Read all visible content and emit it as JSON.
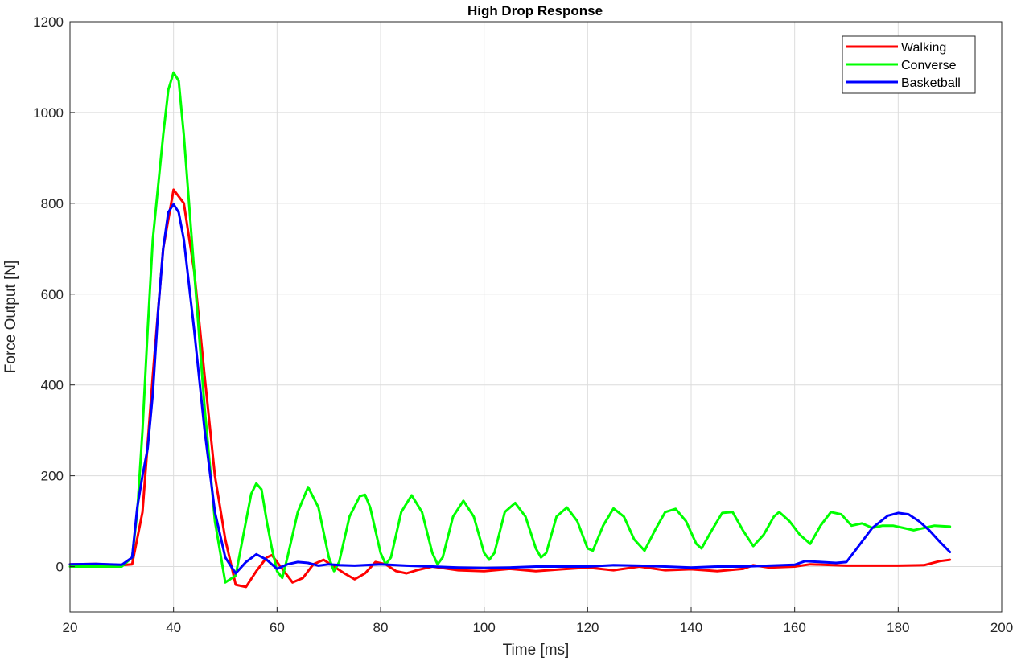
{
  "chart_data": {
    "type": "line",
    "title": "High Drop Response",
    "xlabel": "Time [ms]",
    "ylabel": "Force Output [N]",
    "xlim": [
      20,
      200
    ],
    "ylim": [
      -100,
      1200
    ],
    "xticks": [
      20,
      40,
      60,
      80,
      100,
      120,
      140,
      160,
      180,
      200
    ],
    "yticks": [
      0,
      200,
      400,
      600,
      800,
      1000,
      1200
    ],
    "grid": true,
    "legend_position": "top-right",
    "series": [
      {
        "name": "Walking",
        "color": "#ff0000",
        "points": [
          [
            20,
            5
          ],
          [
            25,
            6
          ],
          [
            30,
            3
          ],
          [
            32,
            5
          ],
          [
            34,
            120
          ],
          [
            36,
            420
          ],
          [
            38,
            700
          ],
          [
            40,
            830
          ],
          [
            42,
            800
          ],
          [
            44,
            650
          ],
          [
            46,
            420
          ],
          [
            48,
            200
          ],
          [
            50,
            60
          ],
          [
            52,
            -40
          ],
          [
            54,
            -45
          ],
          [
            56,
            -10
          ],
          [
            58,
            20
          ],
          [
            59,
            25
          ],
          [
            61,
            -5
          ],
          [
            63,
            -35
          ],
          [
            65,
            -25
          ],
          [
            67,
            5
          ],
          [
            69,
            15
          ],
          [
            71,
            0
          ],
          [
            73,
            -15
          ],
          [
            75,
            -28
          ],
          [
            77,
            -15
          ],
          [
            79,
            10
          ],
          [
            81,
            5
          ],
          [
            83,
            -10
          ],
          [
            85,
            -15
          ],
          [
            87,
            -8
          ],
          [
            90,
            0
          ],
          [
            95,
            -8
          ],
          [
            100,
            -10
          ],
          [
            105,
            -5
          ],
          [
            110,
            -10
          ],
          [
            115,
            -6
          ],
          [
            120,
            -2
          ],
          [
            125,
            -8
          ],
          [
            130,
            0
          ],
          [
            135,
            -8
          ],
          [
            140,
            -6
          ],
          [
            145,
            -10
          ],
          [
            150,
            -5
          ],
          [
            152,
            3
          ],
          [
            155,
            -2
          ],
          [
            160,
            0
          ],
          [
            163,
            5
          ],
          [
            170,
            2
          ],
          [
            180,
            2
          ],
          [
            185,
            3
          ],
          [
            188,
            12
          ],
          [
            190,
            15
          ]
        ]
      },
      {
        "name": "Converse",
        "color": "#00ff00",
        "points": [
          [
            20,
            0
          ],
          [
            25,
            0
          ],
          [
            30,
            0
          ],
          [
            32,
            20
          ],
          [
            33,
            120
          ],
          [
            34,
            300
          ],
          [
            35,
            520
          ],
          [
            36,
            720
          ],
          [
            38,
            950
          ],
          [
            39,
            1050
          ],
          [
            40,
            1088
          ],
          [
            41,
            1070
          ],
          [
            42,
            950
          ],
          [
            44,
            650
          ],
          [
            46,
            350
          ],
          [
            48,
            100
          ],
          [
            50,
            -35
          ],
          [
            52,
            -20
          ],
          [
            53,
            40
          ],
          [
            55,
            160
          ],
          [
            56,
            183
          ],
          [
            57,
            170
          ],
          [
            58,
            100
          ],
          [
            59,
            40
          ],
          [
            60,
            -10
          ],
          [
            61,
            -25
          ],
          [
            62,
            20
          ],
          [
            64,
            120
          ],
          [
            66,
            175
          ],
          [
            68,
            130
          ],
          [
            70,
            20
          ],
          [
            71,
            -10
          ],
          [
            72,
            10
          ],
          [
            74,
            110
          ],
          [
            76,
            155
          ],
          [
            77,
            158
          ],
          [
            78,
            130
          ],
          [
            80,
            30
          ],
          [
            81,
            5
          ],
          [
            82,
            20
          ],
          [
            84,
            120
          ],
          [
            86,
            157
          ],
          [
            88,
            120
          ],
          [
            90,
            30
          ],
          [
            91,
            5
          ],
          [
            92,
            20
          ],
          [
            94,
            110
          ],
          [
            96,
            145
          ],
          [
            98,
            110
          ],
          [
            100,
            30
          ],
          [
            101,
            15
          ],
          [
            102,
            30
          ],
          [
            104,
            120
          ],
          [
            106,
            140
          ],
          [
            108,
            110
          ],
          [
            110,
            40
          ],
          [
            111,
            20
          ],
          [
            112,
            30
          ],
          [
            114,
            110
          ],
          [
            116,
            130
          ],
          [
            118,
            100
          ],
          [
            120,
            40
          ],
          [
            121,
            35
          ],
          [
            123,
            90
          ],
          [
            125,
            128
          ],
          [
            127,
            110
          ],
          [
            129,
            60
          ],
          [
            131,
            35
          ],
          [
            133,
            80
          ],
          [
            135,
            120
          ],
          [
            137,
            127
          ],
          [
            139,
            100
          ],
          [
            141,
            50
          ],
          [
            142,
            40
          ],
          [
            144,
            80
          ],
          [
            146,
            118
          ],
          [
            148,
            120
          ],
          [
            150,
            80
          ],
          [
            152,
            45
          ],
          [
            154,
            70
          ],
          [
            156,
            110
          ],
          [
            157,
            120
          ],
          [
            159,
            100
          ],
          [
            161,
            70
          ],
          [
            163,
            50
          ],
          [
            165,
            90
          ],
          [
            167,
            120
          ],
          [
            169,
            115
          ],
          [
            171,
            90
          ],
          [
            173,
            95
          ],
          [
            175,
            85
          ],
          [
            177,
            90
          ],
          [
            179,
            90
          ],
          [
            181,
            85
          ],
          [
            183,
            80
          ],
          [
            185,
            85
          ],
          [
            187,
            90
          ],
          [
            190,
            88
          ]
        ]
      },
      {
        "name": "Basketball",
        "color": "#0000ff",
        "points": [
          [
            20,
            5
          ],
          [
            25,
            6
          ],
          [
            30,
            4
          ],
          [
            32,
            20
          ],
          [
            33,
            130
          ],
          [
            34,
            200
          ],
          [
            35,
            260
          ],
          [
            36,
            380
          ],
          [
            37,
            560
          ],
          [
            38,
            700
          ],
          [
            39,
            780
          ],
          [
            40,
            798
          ],
          [
            41,
            780
          ],
          [
            42,
            720
          ],
          [
            44,
            520
          ],
          [
            46,
            300
          ],
          [
            48,
            120
          ],
          [
            50,
            20
          ],
          [
            52,
            -15
          ],
          [
            54,
            10
          ],
          [
            56,
            27
          ],
          [
            58,
            15
          ],
          [
            60,
            -5
          ],
          [
            62,
            5
          ],
          [
            64,
            10
          ],
          [
            66,
            8
          ],
          [
            68,
            2
          ],
          [
            70,
            5
          ],
          [
            72,
            3
          ],
          [
            75,
            2
          ],
          [
            80,
            5
          ],
          [
            85,
            2
          ],
          [
            90,
            0
          ],
          [
            95,
            -2
          ],
          [
            100,
            -3
          ],
          [
            105,
            -2
          ],
          [
            110,
            0
          ],
          [
            115,
            0
          ],
          [
            120,
            0
          ],
          [
            125,
            3
          ],
          [
            130,
            2
          ],
          [
            135,
            0
          ],
          [
            140,
            -2
          ],
          [
            145,
            0
          ],
          [
            150,
            0
          ],
          [
            155,
            2
          ],
          [
            160,
            4
          ],
          [
            162,
            12
          ],
          [
            165,
            10
          ],
          [
            168,
            8
          ],
          [
            170,
            10
          ],
          [
            172,
            40
          ],
          [
            175,
            85
          ],
          [
            178,
            112
          ],
          [
            180,
            118
          ],
          [
            182,
            115
          ],
          [
            184,
            100
          ],
          [
            186,
            80
          ],
          [
            188,
            55
          ],
          [
            190,
            32
          ]
        ]
      }
    ]
  }
}
